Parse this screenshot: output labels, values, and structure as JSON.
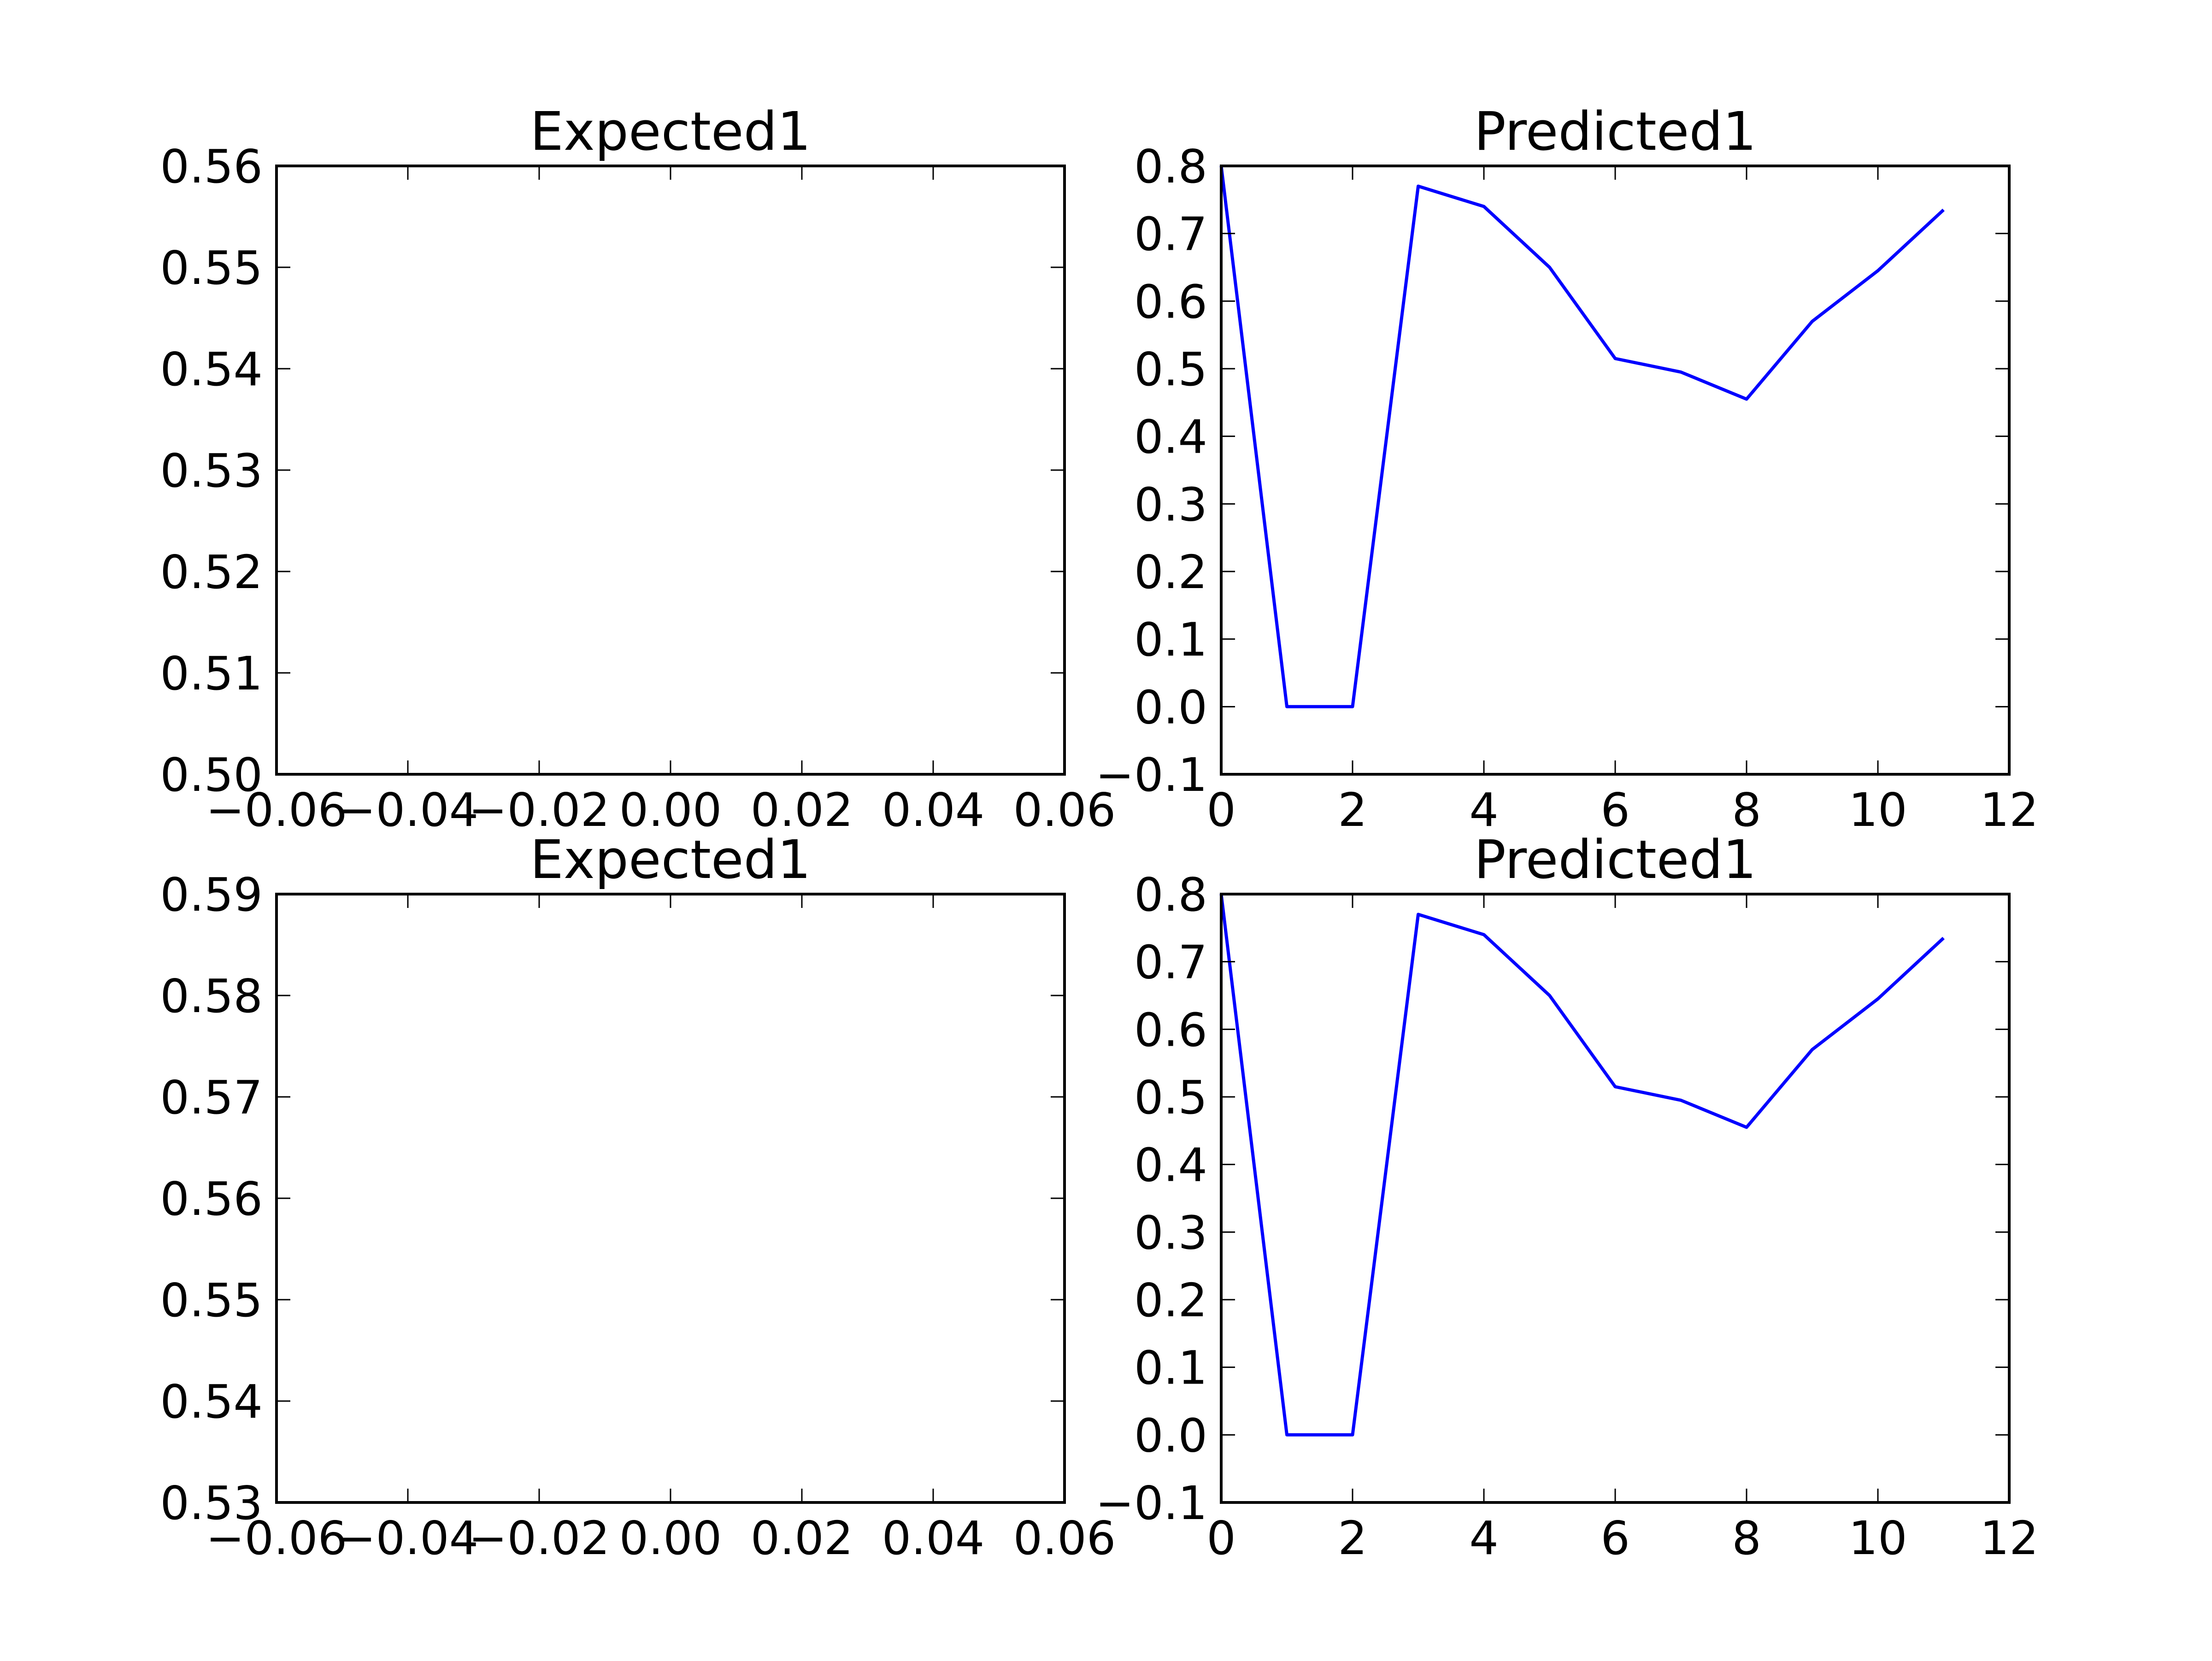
{
  "chart_data": [
    {
      "type": "line",
      "title": "Expected1",
      "xlabel": "",
      "ylabel": "",
      "xlim": [
        -0.06,
        0.06
      ],
      "ylim": [
        0.5,
        0.56
      ],
      "xticks": [
        -0.06,
        -0.04,
        -0.02,
        0.0,
        0.02,
        0.04,
        0.06
      ],
      "xtick_labels": [
        "−0.06",
        "−0.04",
        "−0.02",
        "0.00",
        "0.02",
        "0.04",
        "0.06"
      ],
      "yticks": [
        0.5,
        0.51,
        0.52,
        0.53,
        0.54,
        0.55,
        0.56
      ],
      "ytick_labels": [
        "0.50",
        "0.51",
        "0.52",
        "0.53",
        "0.54",
        "0.55",
        "0.56"
      ],
      "grid": false,
      "series": []
    },
    {
      "type": "line",
      "title": "Predicted1",
      "xlabel": "",
      "ylabel": "",
      "xlim": [
        0,
        12
      ],
      "ylim": [
        -0.1,
        0.8
      ],
      "xticks": [
        0,
        2,
        4,
        6,
        8,
        10,
        12
      ],
      "xtick_labels": [
        "0",
        "2",
        "4",
        "6",
        "8",
        "10",
        "12"
      ],
      "yticks": [
        -0.1,
        0.0,
        0.1,
        0.2,
        0.3,
        0.4,
        0.5,
        0.6,
        0.7,
        0.8
      ],
      "ytick_labels": [
        "−0.1",
        "0.0",
        "0.1",
        "0.2",
        "0.3",
        "0.4",
        "0.5",
        "0.6",
        "0.7",
        "0.8"
      ],
      "grid": false,
      "series": [
        {
          "color": "#0000ff",
          "x": [
            0,
            1,
            2,
            3,
            4,
            5,
            6,
            7,
            8,
            9,
            10,
            11
          ],
          "y": [
            0.8,
            0.0,
            0.0,
            0.77,
            0.74,
            0.65,
            0.515,
            0.495,
            0.455,
            0.57,
            0.645,
            0.735
          ]
        }
      ]
    },
    {
      "type": "line",
      "title": "Expected1",
      "xlabel": "",
      "ylabel": "",
      "xlim": [
        -0.06,
        0.06
      ],
      "ylim": [
        0.53,
        0.59
      ],
      "xticks": [
        -0.06,
        -0.04,
        -0.02,
        0.0,
        0.02,
        0.04,
        0.06
      ],
      "xtick_labels": [
        "−0.06",
        "−0.04",
        "−0.02",
        "0.00",
        "0.02",
        "0.04",
        "0.06"
      ],
      "yticks": [
        0.53,
        0.54,
        0.55,
        0.56,
        0.57,
        0.58,
        0.59
      ],
      "ytick_labels": [
        "0.53",
        "0.54",
        "0.55",
        "0.56",
        "0.57",
        "0.58",
        "0.59"
      ],
      "grid": false,
      "series": []
    },
    {
      "type": "line",
      "title": "Predicted1",
      "xlabel": "",
      "ylabel": "",
      "xlim": [
        0,
        12
      ],
      "ylim": [
        -0.1,
        0.8
      ],
      "xticks": [
        0,
        2,
        4,
        6,
        8,
        10,
        12
      ],
      "xtick_labels": [
        "0",
        "2",
        "4",
        "6",
        "8",
        "10",
        "12"
      ],
      "yticks": [
        -0.1,
        0.0,
        0.1,
        0.2,
        0.3,
        0.4,
        0.5,
        0.6,
        0.7,
        0.8
      ],
      "ytick_labels": [
        "−0.1",
        "0.0",
        "0.1",
        "0.2",
        "0.3",
        "0.4",
        "0.5",
        "0.6",
        "0.7",
        "0.8"
      ],
      "grid": false,
      "series": [
        {
          "color": "#0000ff",
          "x": [
            0,
            1,
            2,
            3,
            4,
            5,
            6,
            7,
            8,
            9,
            10,
            11
          ],
          "y": [
            0.8,
            0.0,
            0.0,
            0.77,
            0.74,
            0.65,
            0.515,
            0.495,
            0.455,
            0.57,
            0.645,
            0.735
          ]
        }
      ]
    }
  ]
}
